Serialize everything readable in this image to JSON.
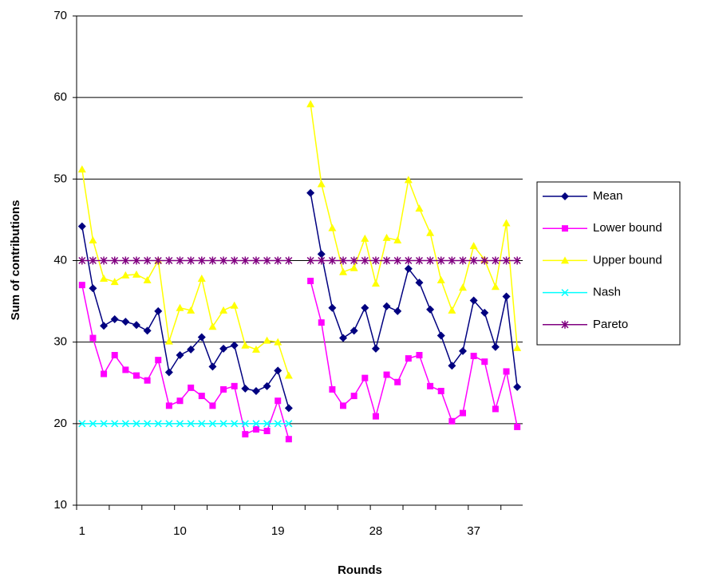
{
  "chart_data": {
    "type": "line",
    "x_label": "Rounds",
    "y_label": "Sum of contributions",
    "categories": [
      "1",
      null,
      null,
      null,
      null,
      null,
      null,
      null,
      null,
      "10",
      null,
      null,
      null,
      null,
      null,
      null,
      null,
      null,
      "19",
      null,
      null,
      null,
      null,
      null,
      null,
      null,
      null,
      "28",
      null,
      null,
      null,
      null,
      null,
      null,
      null,
      null,
      "37",
      null,
      null,
      null,
      null
    ],
    "ylim": [
      10,
      70
    ],
    "yticks": [
      10,
      20,
      30,
      40,
      50,
      60,
      70
    ],
    "grid": true,
    "legend": "right",
    "series": [
      {
        "name": "Mean",
        "color": "#000080",
        "marker": "diamond",
        "values": [
          44.2,
          36.6,
          32.0,
          32.8,
          32.5,
          32.1,
          31.4,
          33.8,
          26.3,
          28.4,
          29.1,
          30.6,
          27.0,
          29.2,
          29.6,
          24.3,
          24.0,
          24.6,
          26.5,
          21.9,
          null,
          48.3,
          40.8,
          34.2,
          30.5,
          31.4,
          34.2,
          29.2,
          34.4,
          33.8,
          39.0,
          37.3,
          34.0,
          30.8,
          27.1,
          28.9,
          35.1,
          33.6,
          29.4,
          35.6,
          24.5
        ]
      },
      {
        "name": "Lower bound",
        "color": "#ff00ff",
        "marker": "square",
        "values": [
          37.0,
          30.5,
          26.1,
          28.4,
          26.6,
          25.9,
          25.3,
          27.8,
          22.2,
          22.8,
          24.4,
          23.4,
          22.2,
          24.2,
          24.6,
          18.7,
          19.3,
          19.1,
          22.8,
          18.1,
          null,
          37.5,
          32.4,
          24.2,
          22.2,
          23.4,
          25.6,
          20.9,
          26.0,
          25.1,
          28.0,
          28.4,
          24.6,
          24.0,
          20.3,
          21.3,
          28.3,
          27.6,
          21.8,
          26.4,
          19.6
        ]
      },
      {
        "name": "Upper bound",
        "color": "#ffff00",
        "marker": "triangle",
        "values": [
          51.2,
          42.5,
          37.8,
          37.4,
          38.2,
          38.3,
          37.6,
          40.0,
          30.1,
          34.2,
          33.9,
          37.8,
          31.9,
          33.9,
          34.5,
          29.6,
          29.1,
          30.2,
          30.0,
          25.9,
          null,
          59.2,
          49.4,
          44.0,
          38.6,
          39.1,
          42.7,
          37.2,
          42.8,
          42.5,
          49.9,
          46.4,
          43.4,
          37.6,
          33.9,
          36.7,
          41.8,
          40.1,
          36.8,
          44.6,
          29.3
        ]
      },
      {
        "name": "Nash",
        "color": "#00ffff",
        "marker": "x",
        "values": [
          20,
          20,
          20,
          20,
          20,
          20,
          20,
          20,
          20,
          20,
          20,
          20,
          20,
          20,
          20,
          20,
          20,
          20,
          20,
          20,
          null,
          null,
          null,
          null,
          null,
          null,
          null,
          null,
          null,
          null,
          null,
          null,
          null,
          null,
          null,
          null,
          null,
          null,
          null,
          null,
          null
        ]
      },
      {
        "name": "Pareto",
        "color": "#800080",
        "marker": "star",
        "values": [
          40,
          40,
          40,
          40,
          40,
          40,
          40,
          40,
          40,
          40,
          40,
          40,
          40,
          40,
          40,
          40,
          40,
          40,
          40,
          40,
          null,
          40,
          40,
          40,
          40,
          40,
          40,
          40,
          40,
          40,
          40,
          40,
          40,
          40,
          40,
          40,
          40,
          40,
          40,
          40,
          40
        ]
      }
    ]
  }
}
